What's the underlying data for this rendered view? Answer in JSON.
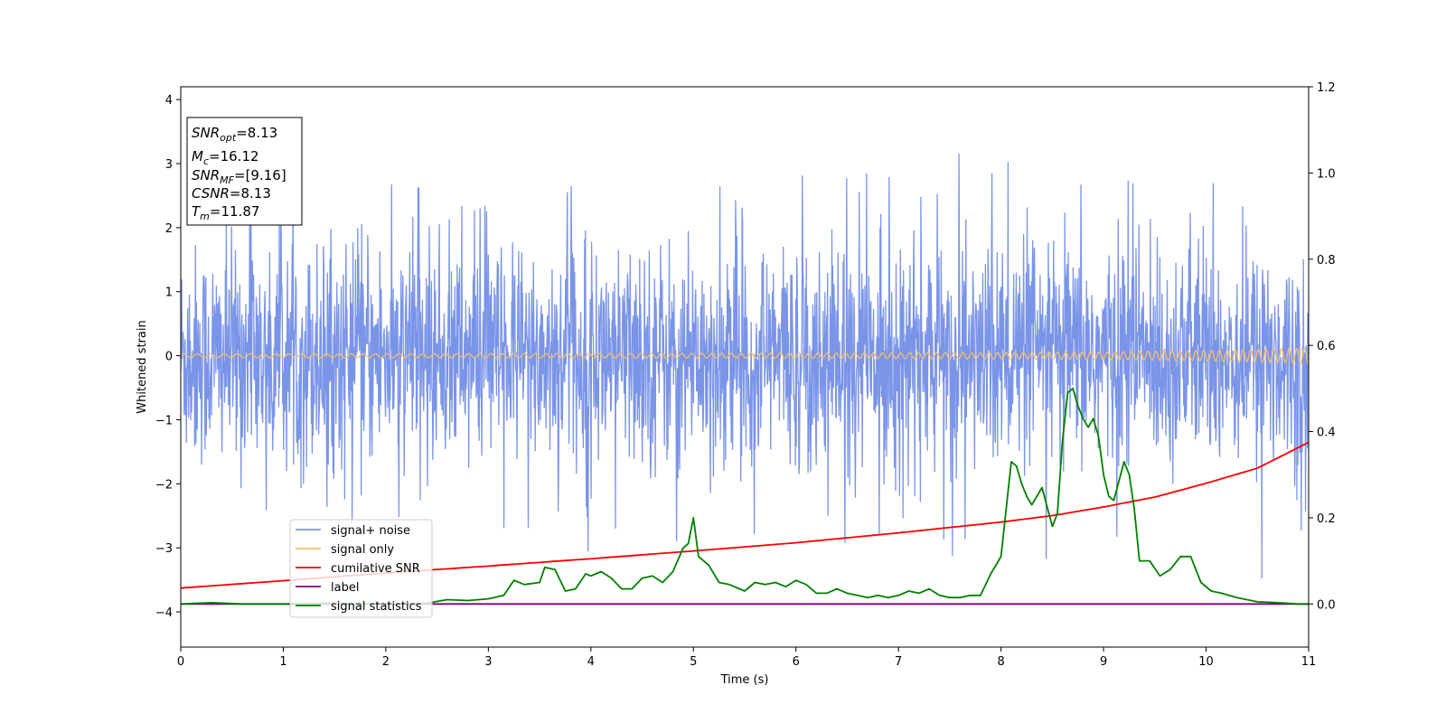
{
  "chart_data": {
    "type": "line",
    "xlabel": "Time (s)",
    "ylabel": "Whitened strain",
    "xlim": [
      0,
      11
    ],
    "ylim": [
      -4.55,
      4.2
    ],
    "y2lim": [
      -0.1,
      1.2
    ],
    "x_ticks": [
      "0",
      "1",
      "2",
      "3",
      "4",
      "5",
      "6",
      "7",
      "8",
      "9",
      "10",
      "11"
    ],
    "y_ticks": [
      "4",
      "3",
      "2",
      "1",
      "0",
      "−1",
      "−2",
      "−3",
      "−4"
    ],
    "y_tick_values": [
      4,
      3,
      2,
      1,
      0,
      -1,
      -2,
      -3,
      -4
    ],
    "y2_ticks": [
      "1.2",
      "1.0",
      "0.8",
      "0.6",
      "0.4",
      "0.2",
      "0.0"
    ],
    "y2_tick_values": [
      1.2,
      1.0,
      0.8,
      0.6,
      0.4,
      0.2,
      0.0
    ],
    "legend_position": "lower-left",
    "annotation": [
      {
        "sym": "SNR",
        "sub": "opt",
        "value": "=8.13"
      },
      {
        "sym": "M",
        "sub": "c",
        "value": "=16.12"
      },
      {
        "sym": "SNR",
        "sub": "MF",
        "value": "=[9.16]"
      },
      {
        "sym": "CSNR",
        "sub": "",
        "value": "=8.13"
      },
      {
        "sym": "T",
        "sub": "m",
        "value": "=11.87"
      }
    ],
    "series": [
      {
        "name": "signal+ noise",
        "color": "#7a94e8",
        "axis": "left",
        "note": "Gaussian-like noise band, mostly within about ±1.3 with spikes to about +3.4 and −3.9",
        "x": [
          0,
          0.5,
          1,
          1.5,
          2,
          2.5,
          3,
          3.5,
          4,
          4.5,
          5,
          5.5,
          6,
          6.5,
          7,
          7.5,
          8,
          8.5,
          9,
          9.5,
          10,
          10.5,
          11
        ],
        "max_values": [
          2.3,
          2.7,
          3.0,
          3.4,
          3.1,
          2.6,
          2.5,
          2.9,
          2.5,
          2.4,
          3.0,
          2.3,
          3.1,
          2.9,
          3.1,
          3.4,
          3.1,
          2.9,
          3.0,
          2.9,
          3.2,
          2.9,
          3.45
        ],
        "min_values": [
          -3.0,
          -2.9,
          -2.7,
          -2.6,
          -2.7,
          -3.1,
          -3.1,
          -3.0,
          -3.2,
          -3.1,
          -3.4,
          -3.0,
          -3.9,
          -3.3,
          -2.9,
          -3.3,
          -3.0,
          -3.6,
          -3.3,
          -3.1,
          -3.9,
          -3.7,
          -2.7
        ]
      },
      {
        "name": "signal only",
        "color": "#f5be6a",
        "axis": "left",
        "note": "chirp oscillation around 0, amplitude about 0.03 growing to about 0.12 at the end",
        "x": [
          0,
          2,
          4,
          6,
          8,
          9,
          10,
          10.5,
          11
        ],
        "amplitude": [
          0.03,
          0.03,
          0.035,
          0.04,
          0.05,
          0.06,
          0.08,
          0.1,
          0.12
        ]
      },
      {
        "name": "cumilative SNR",
        "color": "#ff0000",
        "axis": "right",
        "x": [
          0,
          1,
          2,
          3,
          4,
          5,
          6,
          7,
          8,
          8.5,
          9,
          9.5,
          10,
          10.5,
          11
        ],
        "values": [
          0.037,
          0.054,
          0.072,
          0.088,
          0.105,
          0.123,
          0.142,
          0.165,
          0.19,
          0.205,
          0.225,
          0.248,
          0.28,
          0.315,
          0.375
        ]
      },
      {
        "name": "label",
        "color": "#800080",
        "axis": "right",
        "x": [
          0,
          11
        ],
        "values": [
          0.0,
          0.0
        ]
      },
      {
        "name": "signal statistics",
        "color": "#008000",
        "axis": "right",
        "x": [
          0,
          0.3,
          0.6,
          1.0,
          1.5,
          2.0,
          2.4,
          2.6,
          2.8,
          3.0,
          3.15,
          3.25,
          3.35,
          3.5,
          3.55,
          3.65,
          3.75,
          3.85,
          3.95,
          4.0,
          4.1,
          4.2,
          4.3,
          4.4,
          4.5,
          4.6,
          4.7,
          4.8,
          4.9,
          4.95,
          5.0,
          5.05,
          5.15,
          5.25,
          5.35,
          5.5,
          5.6,
          5.7,
          5.8,
          5.9,
          6.0,
          6.1,
          6.2,
          6.3,
          6.4,
          6.5,
          6.6,
          6.7,
          6.8,
          6.9,
          7.0,
          7.1,
          7.2,
          7.3,
          7.4,
          7.5,
          7.6,
          7.7,
          7.8,
          7.9,
          7.95,
          8.0,
          8.05,
          8.1,
          8.15,
          8.2,
          8.25,
          8.3,
          8.4,
          8.5,
          8.55,
          8.6,
          8.65,
          8.7,
          8.75,
          8.8,
          8.85,
          8.9,
          8.95,
          9.0,
          9.05,
          9.1,
          9.2,
          9.25,
          9.3,
          9.35,
          9.45,
          9.55,
          9.65,
          9.75,
          9.85,
          9.95,
          10.05,
          10.15,
          10.3,
          10.5,
          10.7,
          10.9,
          11.0
        ],
        "values": [
          0.0,
          0.003,
          0.0,
          0.0,
          0.002,
          0.0,
          0.002,
          0.01,
          0.008,
          0.012,
          0.02,
          0.055,
          0.045,
          0.05,
          0.085,
          0.08,
          0.03,
          0.035,
          0.07,
          0.065,
          0.075,
          0.06,
          0.035,
          0.035,
          0.06,
          0.065,
          0.05,
          0.075,
          0.13,
          0.14,
          0.2,
          0.11,
          0.09,
          0.05,
          0.045,
          0.03,
          0.05,
          0.045,
          0.05,
          0.04,
          0.055,
          0.045,
          0.025,
          0.025,
          0.035,
          0.025,
          0.02,
          0.015,
          0.02,
          0.015,
          0.02,
          0.03,
          0.025,
          0.035,
          0.02,
          0.015,
          0.015,
          0.02,
          0.02,
          0.07,
          0.09,
          0.11,
          0.22,
          0.33,
          0.32,
          0.28,
          0.25,
          0.23,
          0.27,
          0.18,
          0.21,
          0.38,
          0.49,
          0.5,
          0.46,
          0.43,
          0.41,
          0.43,
          0.39,
          0.3,
          0.25,
          0.24,
          0.33,
          0.3,
          0.22,
          0.1,
          0.1,
          0.065,
          0.08,
          0.11,
          0.11,
          0.05,
          0.03,
          0.025,
          0.015,
          0.005,
          0.003,
          0.0,
          0.0
        ]
      }
    ]
  }
}
